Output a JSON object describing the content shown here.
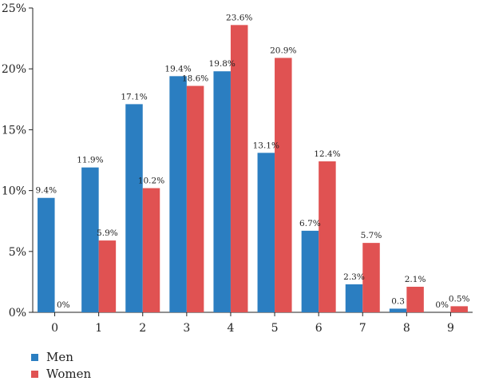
{
  "chart_data": {
    "type": "bar",
    "categories": [
      "0",
      "1",
      "2",
      "3",
      "4",
      "5",
      "6",
      "7",
      "8",
      "9"
    ],
    "series": [
      {
        "name": "Men",
        "color": "#2b7ec1",
        "values": [
          9.4,
          11.9,
          17.1,
          19.4,
          19.8,
          13.1,
          6.7,
          2.3,
          0.3,
          0
        ],
        "labels": [
          "9.4%",
          "11.9%",
          "17.1%",
          "19.4%",
          "19.8%",
          "13.1%",
          "6.7%",
          "2.3%",
          "0.3",
          "0%"
        ]
      },
      {
        "name": "Women",
        "color": "#e05252",
        "values": [
          0,
          5.9,
          10.2,
          18.6,
          23.6,
          20.9,
          12.4,
          5.7,
          2.1,
          0.5
        ],
        "labels": [
          "0%",
          "5.9%",
          "10.2%",
          "18.6%",
          "23.6%",
          "20.9%",
          "12.4%",
          "5.7%",
          "2.1%",
          "0.5%"
        ]
      }
    ],
    "yticks": [
      "0%",
      "5%",
      "10%",
      "15%",
      "20%",
      "25%"
    ],
    "ylim": [
      0,
      25
    ],
    "legend_position": "bottom-left",
    "grid": false
  }
}
